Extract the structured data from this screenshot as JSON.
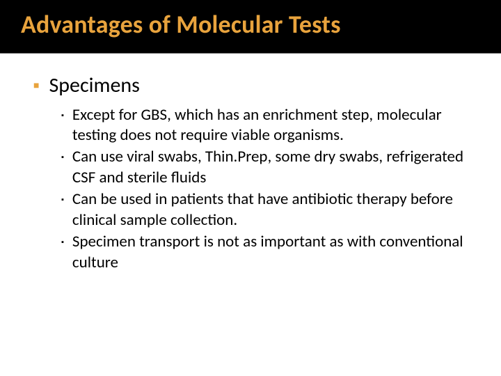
{
  "slide": {
    "background_color": "#ffffff",
    "title": {
      "text": "Advantages of Molecular Tests",
      "color": "#e8a33d",
      "bar_background": "#000000",
      "font_size_pt": 36,
      "font_weight": 700
    },
    "body": {
      "level1_bullet_color": "#e8a33d",
      "level1_font_size_pt": 30,
      "level2_bullet_color": "#000000",
      "level2_font_size_pt": 23,
      "text_color": "#000000",
      "items": [
        {
          "text": "Specimens",
          "children": [
            {
              "text": "Except for GBS, which has an enrichment step, molecular testing does not require viable organisms."
            },
            {
              "text": "Can use viral swabs, Thin.Prep, some dry swabs, refrigerated CSF and sterile fluids"
            },
            {
              "text": "Can be used in patients that have antibiotic therapy before clinical sample collection."
            },
            {
              "text": "Specimen transport is not as important as with conventional culture"
            }
          ]
        }
      ]
    }
  }
}
